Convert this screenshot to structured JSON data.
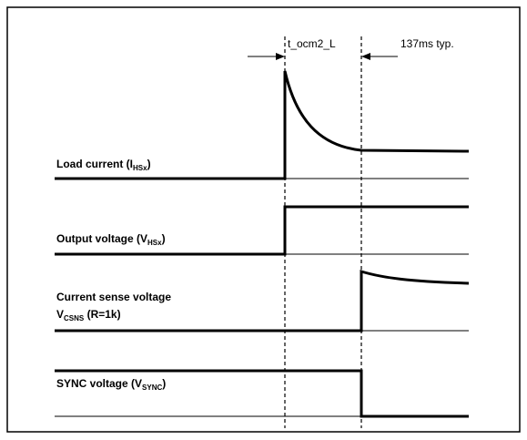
{
  "annotations": {
    "pulse": "t_ocm2_L",
    "typical": "137ms typ."
  },
  "signals": [
    {
      "text": "Load current (I",
      "sub": "HSx",
      "after": ")"
    },
    {
      "text": "Output voltage (V",
      "sub": "HSx",
      "after": ")"
    },
    {
      "text": "Current sense voltage",
      "line2": "V",
      "sub": "CSNS",
      "after": " (R=1k)"
    },
    {
      "text": "SYNC voltage (V",
      "sub": "SYNC",
      "after": ")"
    }
  ]
}
